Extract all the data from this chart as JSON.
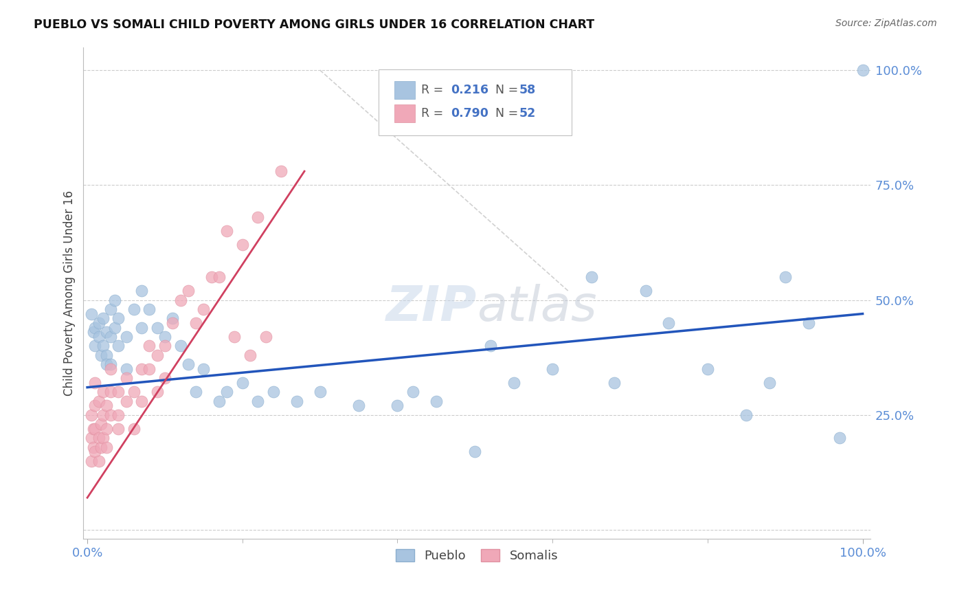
{
  "title": "PUEBLO VS SOMALI CHILD POVERTY AMONG GIRLS UNDER 16 CORRELATION CHART",
  "source": "Source: ZipAtlas.com",
  "ylabel": "Child Poverty Among Girls Under 16",
  "pueblo_color": "#a8c4e0",
  "somali_color": "#f0a8b8",
  "pueblo_edge_color": "#8baece",
  "somali_edge_color": "#e090a0",
  "pueblo_line_color": "#2255bb",
  "somali_line_color": "#d04060",
  "pueblo_R": 0.216,
  "pueblo_N": 58,
  "somali_R": 0.79,
  "somali_N": 52,
  "watermark_zip": "ZIP",
  "watermark_atlas": "atlas",
  "legend_color": "#4472c4",
  "legend_R_label_color": "#555555",
  "ref_line_color": "#cccccc",
  "grid_color": "#cccccc",
  "pueblo_x": [
    0.005,
    0.008,
    0.01,
    0.01,
    0.015,
    0.015,
    0.018,
    0.02,
    0.02,
    0.025,
    0.025,
    0.025,
    0.03,
    0.03,
    0.03,
    0.035,
    0.035,
    0.04,
    0.04,
    0.05,
    0.05,
    0.06,
    0.07,
    0.07,
    0.08,
    0.09,
    0.1,
    0.11,
    0.12,
    0.13,
    0.14,
    0.15,
    0.17,
    0.18,
    0.2,
    0.22,
    0.24,
    0.27,
    0.3,
    0.35,
    0.4,
    0.42,
    0.45,
    0.5,
    0.52,
    0.55,
    0.6,
    0.65,
    0.68,
    0.72,
    0.75,
    0.8,
    0.85,
    0.88,
    0.9,
    0.93,
    0.97,
    1.0
  ],
  "pueblo_y": [
    0.47,
    0.43,
    0.44,
    0.4,
    0.45,
    0.42,
    0.38,
    0.46,
    0.4,
    0.43,
    0.38,
    0.36,
    0.48,
    0.42,
    0.36,
    0.5,
    0.44,
    0.46,
    0.4,
    0.42,
    0.35,
    0.48,
    0.52,
    0.44,
    0.48,
    0.44,
    0.42,
    0.46,
    0.4,
    0.36,
    0.3,
    0.35,
    0.28,
    0.3,
    0.32,
    0.28,
    0.3,
    0.28,
    0.3,
    0.27,
    0.27,
    0.3,
    0.28,
    0.17,
    0.4,
    0.32,
    0.35,
    0.55,
    0.32,
    0.52,
    0.45,
    0.35,
    0.25,
    0.32,
    0.55,
    0.45,
    0.2,
    1.0
  ],
  "somali_x": [
    0.005,
    0.005,
    0.005,
    0.008,
    0.008,
    0.01,
    0.01,
    0.01,
    0.01,
    0.015,
    0.015,
    0.015,
    0.018,
    0.018,
    0.02,
    0.02,
    0.02,
    0.025,
    0.025,
    0.025,
    0.03,
    0.03,
    0.03,
    0.04,
    0.04,
    0.04,
    0.05,
    0.05,
    0.06,
    0.06,
    0.07,
    0.07,
    0.08,
    0.08,
    0.09,
    0.09,
    0.1,
    0.1,
    0.11,
    0.12,
    0.13,
    0.14,
    0.15,
    0.16,
    0.17,
    0.18,
    0.19,
    0.2,
    0.21,
    0.22,
    0.23,
    0.25
  ],
  "somali_y": [
    0.15,
    0.2,
    0.25,
    0.18,
    0.22,
    0.17,
    0.22,
    0.27,
    0.32,
    0.15,
    0.2,
    0.28,
    0.23,
    0.18,
    0.25,
    0.3,
    0.2,
    0.22,
    0.27,
    0.18,
    0.25,
    0.3,
    0.35,
    0.25,
    0.3,
    0.22,
    0.28,
    0.33,
    0.3,
    0.22,
    0.35,
    0.28,
    0.35,
    0.4,
    0.38,
    0.3,
    0.4,
    0.33,
    0.45,
    0.5,
    0.52,
    0.45,
    0.48,
    0.55,
    0.55,
    0.65,
    0.42,
    0.62,
    0.38,
    0.68,
    0.42,
    0.78
  ],
  "pueblo_line_x": [
    0.0,
    1.0
  ],
  "pueblo_line_y": [
    0.31,
    0.47
  ],
  "somali_line_x": [
    0.0,
    0.28
  ],
  "somali_line_y": [
    0.07,
    0.78
  ],
  "ref_line_x": [
    0.3,
    0.62
  ],
  "ref_line_y": [
    1.0,
    0.52
  ],
  "ytick_positions": [
    0.0,
    0.25,
    0.5,
    0.75,
    1.0
  ],
  "ytick_labels": [
    "",
    "25.0%",
    "50.0%",
    "75.0%",
    "100.0%"
  ],
  "xtick_major": [
    0.0,
    1.0
  ],
  "xtick_minor": [
    0.2,
    0.4,
    0.6,
    0.8
  ],
  "xtick_labels": [
    "0.0%",
    "100.0%"
  ]
}
